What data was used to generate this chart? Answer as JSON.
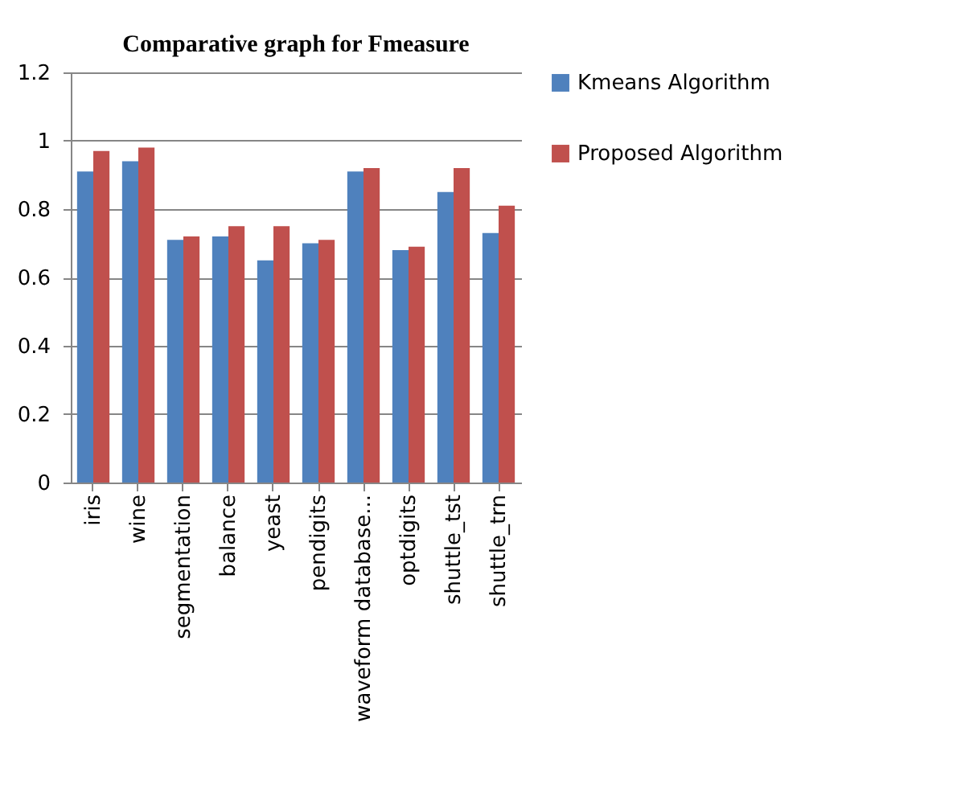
{
  "chart_data": {
    "type": "bar",
    "title": "Comparative graph for Fmeasure",
    "categories": [
      "iris",
      "wine",
      "segmentation",
      "balance",
      "yeast",
      "pendigits",
      "waveform database...",
      "optdigits",
      "shuttle_tst",
      "shuttle_trn"
    ],
    "series": [
      {
        "name": "Kmeans Algorithm",
        "color": "#4f81bd",
        "values": [
          0.91,
          0.94,
          0.71,
          0.72,
          0.65,
          0.7,
          0.91,
          0.68,
          0.85,
          0.73
        ]
      },
      {
        "name": "Proposed Algorithm",
        "color": "#c0504d",
        "values": [
          0.97,
          0.98,
          0.72,
          0.75,
          0.75,
          0.71,
          0.92,
          0.69,
          0.92,
          0.81
        ]
      }
    ],
    "ylim": [
      0,
      1.2
    ],
    "yticks": [
      0,
      0.2,
      0.4,
      0.6,
      0.8,
      1,
      1.2
    ],
    "grid": "y",
    "legend": "right"
  }
}
